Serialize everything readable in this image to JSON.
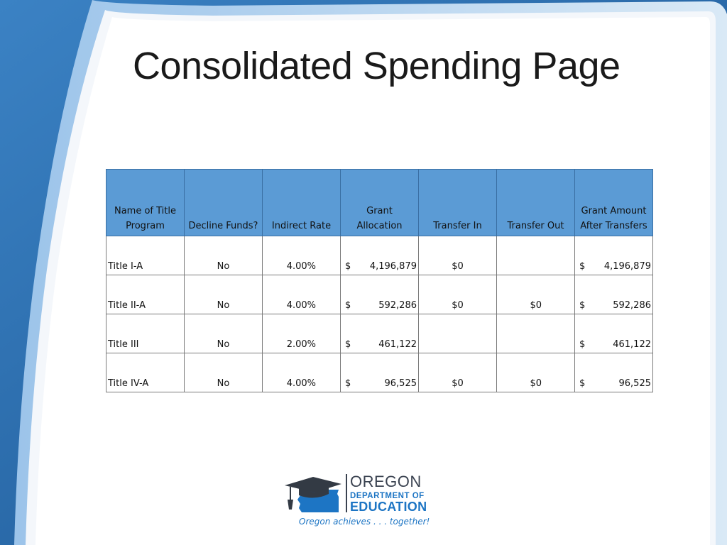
{
  "slide": {
    "title": "Consolidated Spending Page"
  },
  "table": {
    "headers": [
      [
        "Name of Title",
        "Program"
      ],
      [
        "Decline Funds?"
      ],
      [
        "Indirect Rate"
      ],
      [
        "Grant",
        "Allocation"
      ],
      [
        "Transfer In"
      ],
      [
        "Transfer Out"
      ],
      [
        "Grant Amount",
        "After Transfers"
      ]
    ],
    "rows": [
      {
        "program": "Title I-A",
        "decline": "No",
        "rate": "4.00%",
        "alloc_cur": "$",
        "alloc": "4,196,879",
        "transfer_in": "$0",
        "transfer_out": "",
        "after_cur": "$",
        "after": "4,196,879"
      },
      {
        "program": "Title II-A",
        "decline": "No",
        "rate": "4.00%",
        "alloc_cur": "$",
        "alloc": "592,286",
        "transfer_in": "$0",
        "transfer_out": "$0",
        "after_cur": "$",
        "after": "592,286"
      },
      {
        "program": "Title III",
        "decline": "No",
        "rate": "2.00%",
        "alloc_cur": "$",
        "alloc": "461,122",
        "transfer_in": "",
        "transfer_out": "",
        "after_cur": "$",
        "after": "461,122"
      },
      {
        "program": "Title IV-A",
        "decline": "No",
        "rate": "4.00%",
        "alloc_cur": "$",
        "alloc": "96,525",
        "transfer_in": "$0",
        "transfer_out": "$0",
        "after_cur": "$",
        "after": "96,525"
      }
    ]
  },
  "logo": {
    "line1": "OREGON",
    "line2": "DEPARTMENT OF",
    "line3": "EDUCATION",
    "tagline": "Oregon achieves . . . together!",
    "icon": "graduation-cap-oregon-icon"
  },
  "colors": {
    "header_fill": "#5b9bd5",
    "background_blue": "#2f6ea8",
    "logo_blue": "#1d75c4"
  }
}
